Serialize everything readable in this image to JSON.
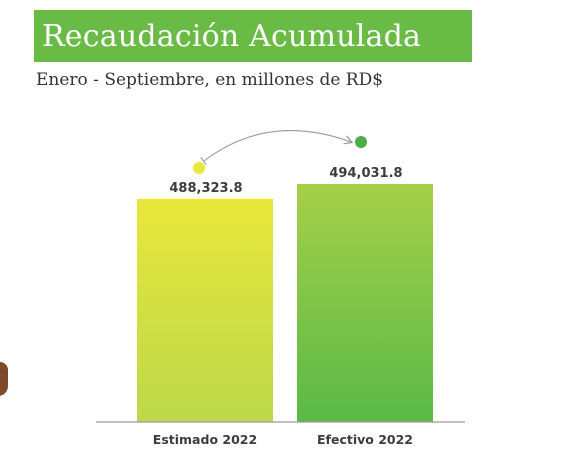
{
  "header": {
    "title": "Recaudación Acumulada",
    "subtitle": "Enero - Septiembre, en millones de RD$"
  },
  "colors": {
    "banner": "#6aba46",
    "estimado_top": "#e8e73a",
    "estimado_bottom": "#bcd84a",
    "efectivo_top": "#a6cf48",
    "efectivo_bottom": "#5ab947",
    "marker_estimado": "#e8e73a",
    "marker_efectivo": "#4dae48",
    "arrow": "#999999"
  },
  "chart_data": {
    "type": "bar",
    "categories": [
      "Estimado 2022",
      "Efectivo 2022"
    ],
    "values": [
      488323.8,
      494031.8
    ],
    "value_labels": [
      "488,323.8",
      "494,031.8"
    ],
    "title": "Recaudación Acumulada",
    "subtitle": "Enero - Septiembre, en millones de RD$",
    "xlabel": "",
    "ylabel": "",
    "grid": false,
    "legend": "none"
  }
}
